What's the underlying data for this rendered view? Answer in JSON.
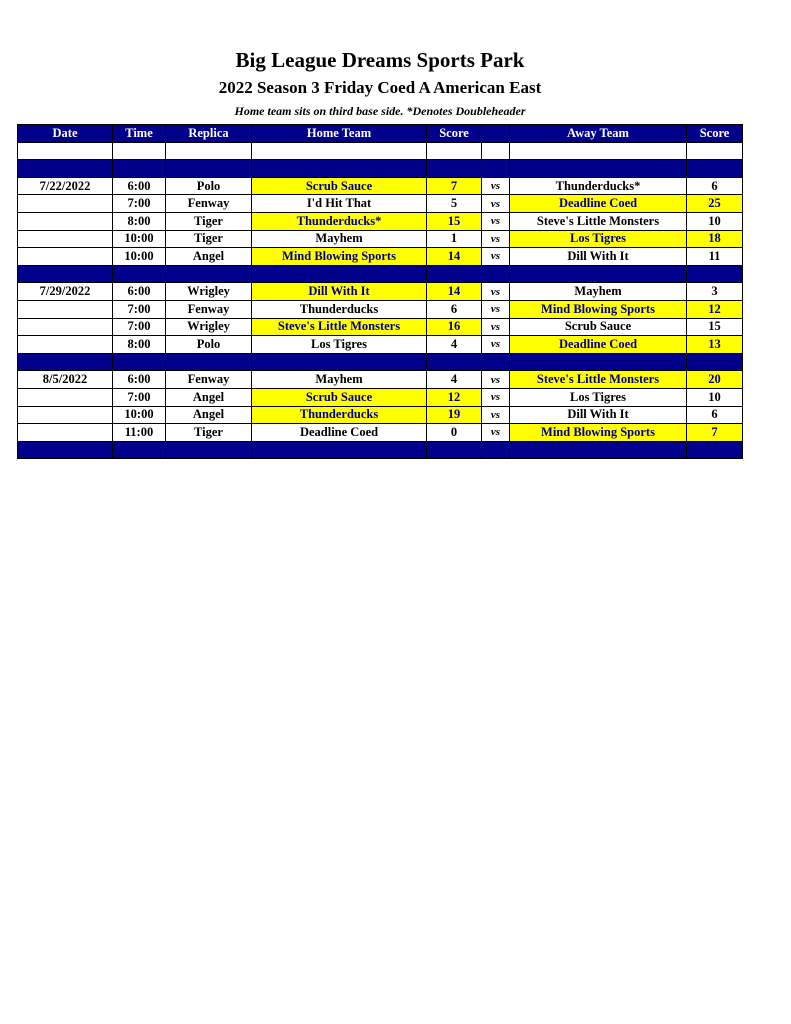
{
  "title": "Big League Dreams Sports Park",
  "subtitle": "2022 Season 3 Friday Coed A American East",
  "note": "Home team sits on third base side.  *Denotes Doubleheader",
  "headers": [
    "Date",
    "Time",
    "Replica",
    "Home Team",
    "Score",
    "",
    "Away Team",
    "Score"
  ],
  "colors": {
    "header": "#00008b",
    "winner": "#ffff00"
  },
  "vs_label": "vs",
  "weeks": [
    {
      "date": "7/22/2022",
      "games": [
        {
          "time": "6:00",
          "replica": "Polo",
          "home": "Scrub Sauce",
          "home_score": "7",
          "away": "Thunderducks*",
          "away_score": "6"
        },
        {
          "time": "7:00",
          "replica": "Fenway",
          "home": "I'd Hit That",
          "home_score": "5",
          "away": "Deadline Coed",
          "away_score": "25"
        },
        {
          "time": "8:00",
          "replica": "Tiger",
          "home": "Thunderducks*",
          "home_score": "15",
          "away": "Steve's Little Monsters",
          "away_score": "10"
        },
        {
          "time": "10:00",
          "replica": "Tiger",
          "home": "Mayhem",
          "home_score": "1",
          "away": "Los Tigres",
          "away_score": "18"
        },
        {
          "time": "10:00",
          "replica": "Angel",
          "home": "Mind Blowing Sports",
          "home_score": "14",
          "away": "Dill With It",
          "away_score": "11"
        }
      ]
    },
    {
      "date": "7/29/2022",
      "games": [
        {
          "time": "6:00",
          "replica": "Wrigley",
          "home": "Dill With It",
          "home_score": "14",
          "away": "Mayhem",
          "away_score": "3"
        },
        {
          "time": "7:00",
          "replica": "Fenway",
          "home": "Thunderducks",
          "home_score": "6",
          "away": "Mind Blowing Sports",
          "away_score": "12"
        },
        {
          "time": "7:00",
          "replica": "Wrigley",
          "home": "Steve's Little Monsters",
          "home_score": "16",
          "away": "Scrub Sauce",
          "away_score": "15"
        },
        {
          "time": "8:00",
          "replica": "Polo",
          "home": "Los Tigres",
          "home_score": "4",
          "away": "Deadline Coed",
          "away_score": "13"
        }
      ]
    },
    {
      "date": "8/5/2022",
      "games": [
        {
          "time": "6:00",
          "replica": "Fenway",
          "home": "Mayhem",
          "home_score": "4",
          "away": "Steve's Little Monsters",
          "away_score": "20"
        },
        {
          "time": "7:00",
          "replica": "Angel",
          "home": "Scrub Sauce",
          "home_score": "12",
          "away": "Los Tigres",
          "away_score": "10"
        },
        {
          "time": "10:00",
          "replica": "Angel",
          "home": "Thunderducks",
          "home_score": "19",
          "away": "Dill With It",
          "away_score": "6"
        },
        {
          "time": "11:00",
          "replica": "Tiger",
          "home": "Deadline Coed",
          "home_score": "0",
          "away": "Mind Blowing Sports",
          "away_score": "7"
        }
      ]
    }
  ]
}
